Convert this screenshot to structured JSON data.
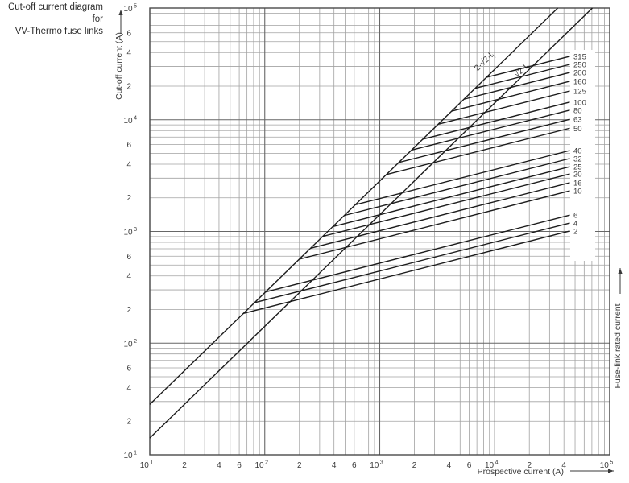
{
  "header": {
    "title_line1": "Cut-off current diagram for",
    "title_line2": "VV-Thermo fuse links"
  },
  "chart_data": {
    "type": "line",
    "scale": "log-log",
    "grid": "log minor 2-9 both axes",
    "x_axis": {
      "label": "Prospective current (A)",
      "min": 10,
      "max": 100000,
      "decade_ticks": [
        "10^1",
        "10^2",
        "10^3",
        "10^4",
        "10^5"
      ],
      "labeled_minors_by_decade": {
        "1": [
          2,
          4,
          6
        ],
        "2": [
          2,
          4,
          6
        ],
        "3": [
          2,
          4,
          6
        ],
        "4": [
          2,
          4
        ]
      }
    },
    "y_axis": {
      "label": "Cut-off current (A)",
      "min": 10,
      "max": 100000,
      "decade_ticks": [
        "10^1",
        "10^2",
        "10^3",
        "10^4",
        "10^5"
      ],
      "labeled_minors_by_decade": {
        "1": [
          2,
          4,
          6
        ],
        "2": [
          2,
          4,
          6
        ],
        "3": [
          2,
          4,
          6
        ],
        "4": [
          2,
          4,
          6
        ]
      }
    },
    "right_axis_label": "Fuse-link rated current",
    "reference_lines": [
      {
        "prefix": "2·√2·I",
        "sub": "k",
        "factor": 2.8284
      },
      {
        "prefix": "√2·I",
        "sub": "k",
        "factor": 1.4142
      }
    ],
    "series_model": {
      "description": "Each fuse-link curve branches off the 2·√2·Ik peak line and rises with constant log-log slope to the prospective current where it is labelled.",
      "loglog_slope": 0.26,
      "branch_from_factor": 2.8284,
      "end_x": 45000
    },
    "series": [
      {
        "rating": "315",
        "cutoff_at_end": 37000
      },
      {
        "rating": "250",
        "cutoff_at_end": 31300
      },
      {
        "rating": "200",
        "cutoff_at_end": 26500
      },
      {
        "rating": "160",
        "cutoff_at_end": 22100
      },
      {
        "rating": "125",
        "cutoff_at_end": 18100
      },
      {
        "rating": "100",
        "cutoff_at_end": 14400
      },
      {
        "rating": "80",
        "cutoff_at_end": 12200
      },
      {
        "rating": "63",
        "cutoff_at_end": 10100
      },
      {
        "rating": "50",
        "cutoff_at_end": 8400
      },
      {
        "rating": "40",
        "cutoff_at_end": 5300
      },
      {
        "rating": "32",
        "cutoff_at_end": 4500
      },
      {
        "rating": "25",
        "cutoff_at_end": 3800
      },
      {
        "rating": "20",
        "cutoff_at_end": 3270
      },
      {
        "rating": "16",
        "cutoff_at_end": 2730
      },
      {
        "rating": "10",
        "cutoff_at_end": 2310
      },
      {
        "rating": "6",
        "cutoff_at_end": 1400
      },
      {
        "rating": "4",
        "cutoff_at_end": 1190
      },
      {
        "rating": "2",
        "cutoff_at_end": 1010
      }
    ],
    "colors": {
      "grid_minor": "#a2a2a2",
      "grid_major": "#676767",
      "border": "#4a4a4a",
      "curve": "#1c1c1c",
      "text": "#3a3a3a"
    },
    "legend_position": "right-inside"
  }
}
